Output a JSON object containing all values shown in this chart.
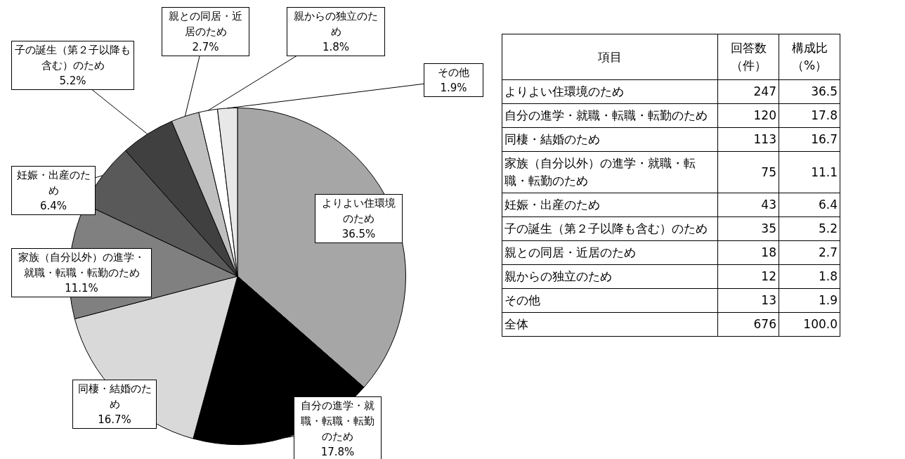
{
  "chart_data": [
    {
      "type": "pie",
      "categories": [
        "よりよい住環境のため",
        "自分の進学・就職・転職・転勤のため",
        "同棲・結婚のため",
        "家族（自分以外）の進学・就職・転職・転勤のため",
        "妊娠・出産のため",
        "子の誕生（第２子以降も含む）のため",
        "親との同居・近居のため",
        "親からの独立のため",
        "その他"
      ],
      "values": [
        36.5,
        17.8,
        16.7,
        11.1,
        6.4,
        5.2,
        2.7,
        1.8,
        1.9
      ],
      "value_labels": [
        "36.5%",
        "17.8%",
        "16.7%",
        "11.1%",
        "6.4%",
        "5.2%",
        "2.7%",
        "1.8%",
        "1.9%"
      ],
      "colors": [
        "#a6a6a6",
        "#000000",
        "#d9d9d9",
        "#808080",
        "#595959",
        "#404040",
        "#bfbfbf",
        "#ffffff",
        "#e8e8e8"
      ]
    },
    {
      "type": "other",
      "xlabel": "項目",
      "categories": [
        "よりよい住環境のため",
        "自分の進学・就職・転職・転勤のため",
        "同棲・結婚のため",
        "家族（自分以外）の進学・就職・転職・転勤のため",
        "妊娠・出産のため",
        "子の誕生（第２子以降も含む）のため",
        "親との同居・近居のため",
        "親からの独立のため",
        "その他",
        "全体"
      ],
      "data_labels": true,
      "series": [
        {
          "name": "回答数（件）",
          "values": [
            247,
            120,
            113,
            75,
            43,
            35,
            18,
            12,
            13,
            676
          ]
        },
        {
          "name": "構成比（%）",
          "values": [
            36.5,
            17.8,
            16.7,
            11.1,
            6.4,
            5.2,
            2.7,
            1.8,
            1.9,
            100.0
          ],
          "value_labels": [
            "36.5",
            "17.8",
            "16.7",
            "11.1",
            "6.4",
            "5.2",
            "2.7",
            "1.8",
            "1.9",
            "100.0"
          ]
        }
      ]
    }
  ]
}
